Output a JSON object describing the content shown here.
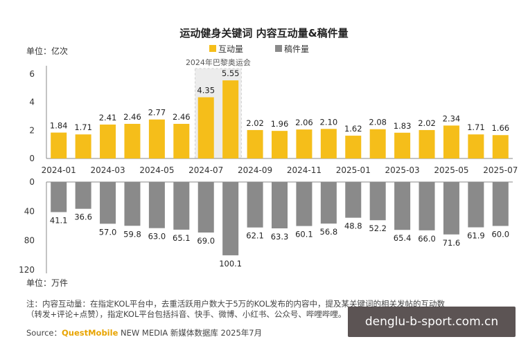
{
  "chart_data": {
    "type": "bar",
    "title": "运动健身关键词 内容互动量&稿件量",
    "legend": [
      "互动量",
      "稿件量"
    ],
    "legend_placement": "top-center",
    "categories": [
      "2024-01",
      "2024-02",
      "2024-03",
      "2024-04",
      "2024-05",
      "2024-06",
      "2024-07",
      "2024-08",
      "2024-09",
      "2024-10",
      "2024-11",
      "2024-12",
      "2025-01",
      "2025-02",
      "2025-03",
      "2025-04",
      "2025-05",
      "2025-06",
      "2025-07"
    ],
    "tick_labels": [
      "2024-01",
      "2024-03",
      "2024-05",
      "2024-07",
      "2024-09",
      "2024-11",
      "2025-01",
      "2025-03",
      "2025-05",
      "2025-07"
    ],
    "top_panel": {
      "series_name": "互动量",
      "unit": "单位：亿次",
      "values": [
        1.84,
        1.71,
        2.41,
        2.46,
        2.77,
        2.46,
        4.35,
        5.55,
        2.02,
        1.96,
        2.06,
        2.1,
        1.62,
        2.08,
        1.83,
        2.02,
        2.34,
        1.71,
        1.66
      ],
      "value_labels": [
        "1.84",
        "1.71",
        "2.41",
        "2.46",
        "2.77",
        "2.46",
        "4.35",
        "5.55",
        "2.02",
        "1.96",
        "2.06",
        "2.10",
        "1.62",
        "2.08",
        "1.83",
        "2.02",
        "2.34",
        "1.71",
        "1.66"
      ],
      "ylim": [
        0,
        6
      ],
      "yticks": [
        "0",
        "2",
        "4",
        "6"
      ],
      "color": "#f5be1a",
      "highlight_color": "#f7c21c"
    },
    "bottom_panel": {
      "series_name": "稿件量",
      "unit": "单位：万件",
      "values": [
        41.1,
        36.6,
        57.0,
        59.8,
        63.0,
        65.1,
        69.0,
        100.1,
        62.1,
        63.3,
        60.1,
        56.8,
        48.8,
        52.2,
        65.4,
        66.0,
        71.6,
        61.9,
        60.0
      ],
      "value_labels": [
        "41.1",
        "36.6",
        "57.0",
        "59.8",
        "63.0",
        "65.1",
        "69.0",
        "100.1",
        "62.1",
        "63.3",
        "60.1",
        "56.8",
        "48.8",
        "52.2",
        "65.4",
        "66.0",
        "71.6",
        "61.9",
        "60.0"
      ],
      "ylim": [
        0,
        120
      ],
      "yticks": [
        "0",
        "40",
        "80",
        "120"
      ],
      "color": "#8a8a8a"
    },
    "annotation": {
      "text": "2024年巴黎奥运会",
      "categories": [
        "2024-07",
        "2024-08"
      ]
    },
    "grid": false
  },
  "notes": {
    "line1": "注：内容互动量：在指定KOL平台中，去重活跃用户数大于5万的KOL发布的内容中，提及某关键词的相关发帖的互动数",
    "line2": "（转发+评论+点赞），指定KOL平台包括抖音、快手、微博、小红书、公众号、哔哩哔哩。"
  },
  "source": {
    "prefix": "Source：",
    "brand": "QuestMobile",
    "rest": " NEW MEDIA 新媒体数据库 2025年7月"
  },
  "watermark": "denglu-b-sport.com.cn"
}
